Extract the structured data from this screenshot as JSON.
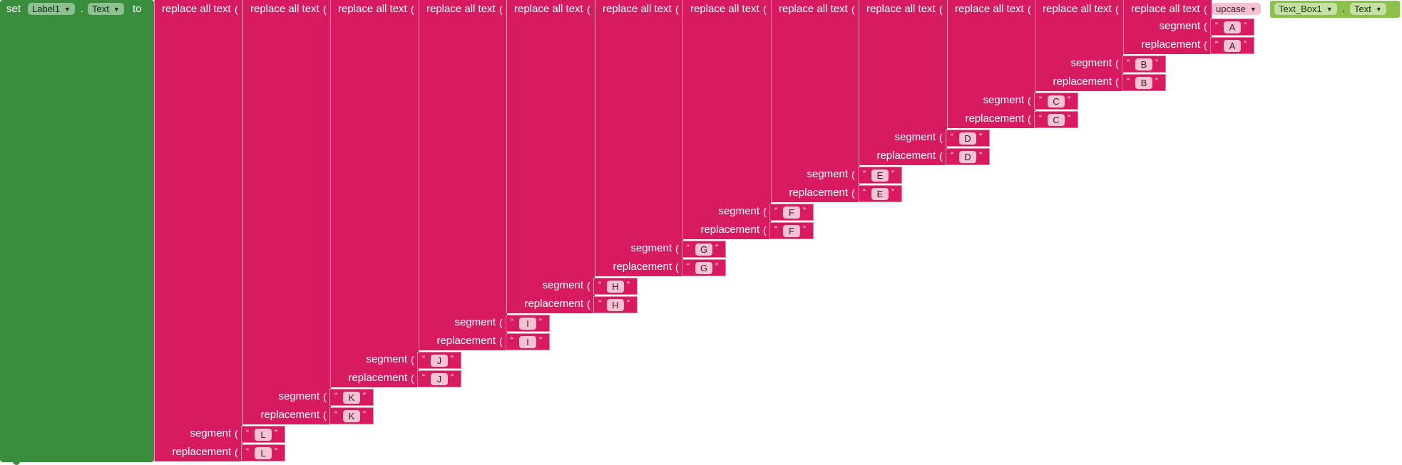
{
  "set_block": {
    "set_label": "set",
    "component": "Label1",
    "dot": ".",
    "property": "Text",
    "to_label": "to"
  },
  "replace_label": "replace all text",
  "segment_label": "segment",
  "replacement_label": "replacement",
  "open_paren": "(",
  "quote_open": "“",
  "quote_close": "”",
  "upcase": {
    "label": "upcase",
    "component": "Text_Box1",
    "dot": ".",
    "property": "Text"
  },
  "pairs": [
    {
      "segment": "A",
      "replacement": "A"
    },
    {
      "segment": "B",
      "replacement": "B"
    },
    {
      "segment": "C",
      "replacement": "C"
    },
    {
      "segment": "D",
      "replacement": "D"
    },
    {
      "segment": "E",
      "replacement": "E"
    },
    {
      "segment": "F",
      "replacement": "F"
    },
    {
      "segment": "G",
      "replacement": "G"
    },
    {
      "segment": "H",
      "replacement": "H"
    },
    {
      "segment": "I",
      "replacement": "I"
    },
    {
      "segment": "J",
      "replacement": "J"
    },
    {
      "segment": "K",
      "replacement": "K"
    },
    {
      "segment": "L",
      "replacement": "L"
    }
  ],
  "colors": {
    "control_block": "#388e3c",
    "text_block": "#d81b60",
    "string_value": "#f5c1d3",
    "component_block": "#8bc34a"
  }
}
